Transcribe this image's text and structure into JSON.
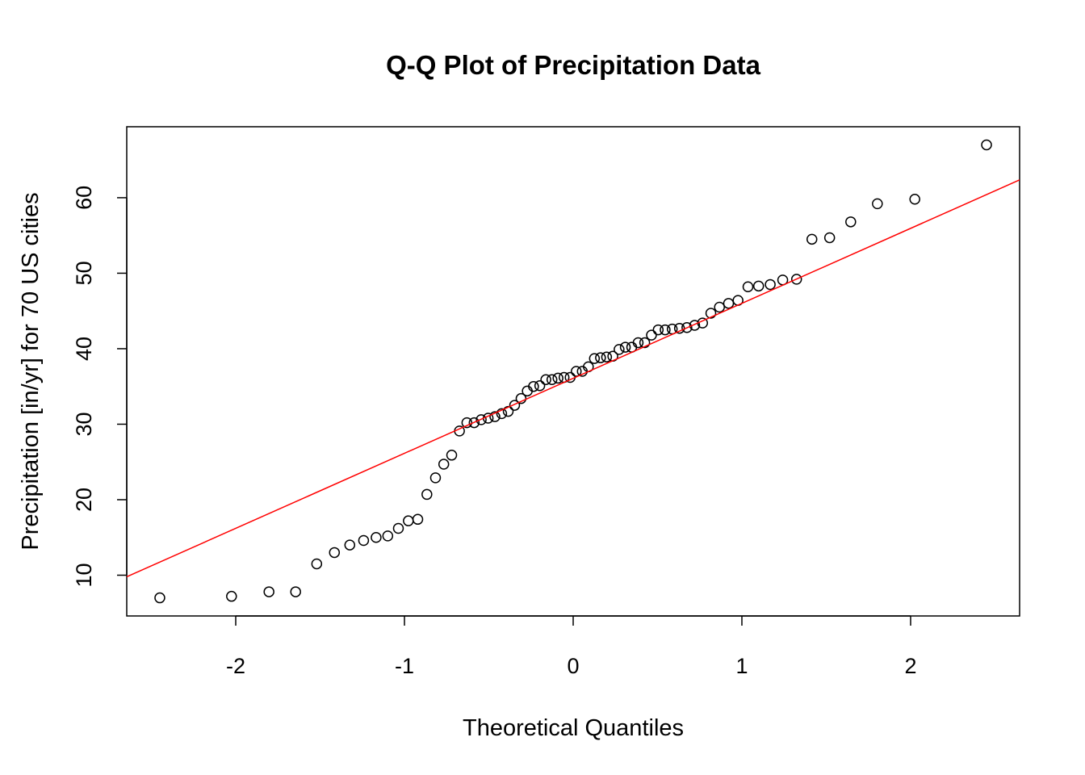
{
  "chart_data": {
    "type": "scatter",
    "title": "Q-Q Plot of Precipitation Data",
    "x_label": "Theoretical Quantiles",
    "y_label": "Precipitation [in/yr] for 70 US cities",
    "x": [
      -2.45,
      -2.025,
      -1.803,
      -1.645,
      -1.52,
      -1.415,
      -1.324,
      -1.242,
      -1.168,
      -1.099,
      -1.036,
      -0.977,
      -0.921,
      -0.867,
      -0.816,
      -0.767,
      -0.72,
      -0.674,
      -0.63,
      -0.587,
      -0.545,
      -0.504,
      -0.464,
      -0.424,
      -0.385,
      -0.347,
      -0.309,
      -0.272,
      -0.235,
      -0.198,
      -0.162,
      -0.126,
      -0.09,
      -0.054,
      -0.018,
      0.018,
      0.054,
      0.09,
      0.126,
      0.162,
      0.198,
      0.235,
      0.272,
      0.309,
      0.347,
      0.385,
      0.424,
      0.464,
      0.504,
      0.545,
      0.587,
      0.63,
      0.674,
      0.72,
      0.767,
      0.816,
      0.867,
      0.921,
      0.977,
      1.036,
      1.099,
      1.168,
      1.242,
      1.324,
      1.415,
      1.52,
      1.645,
      1.803,
      2.025,
      2.45
    ],
    "values": [
      7.0,
      7.2,
      7.8,
      7.8,
      11.5,
      13.0,
      14.0,
      14.6,
      15.0,
      15.2,
      16.2,
      17.2,
      17.4,
      20.7,
      22.9,
      24.7,
      25.9,
      29.1,
      30.2,
      30.2,
      30.6,
      30.8,
      31.0,
      31.4,
      31.7,
      32.5,
      33.4,
      34.4,
      35.0,
      35.1,
      35.9,
      35.9,
      36.1,
      36.2,
      36.2,
      37.0,
      37.0,
      37.6,
      38.7,
      38.8,
      38.9,
      39.0,
      39.9,
      40.2,
      40.2,
      40.8,
      40.8,
      41.8,
      42.5,
      42.5,
      42.6,
      42.7,
      42.8,
      43.1,
      43.4,
      44.7,
      45.5,
      46.0,
      46.4,
      48.2,
      48.3,
      48.5,
      49.1,
      49.2,
      54.5,
      54.7,
      56.8,
      59.2,
      59.8,
      67.0
    ],
    "marker_color": "#000000",
    "reference_line": {
      "intercept": 36.075,
      "slope": 9.933,
      "color": "#ff0000"
    },
    "xlim": [
      -2.646,
      2.646
    ],
    "xticks": [
      -2,
      -1,
      0,
      1,
      2
    ],
    "ylim": [
      4.6,
      69.4
    ],
    "yticks": [
      10,
      20,
      30,
      40,
      50,
      60
    ]
  }
}
